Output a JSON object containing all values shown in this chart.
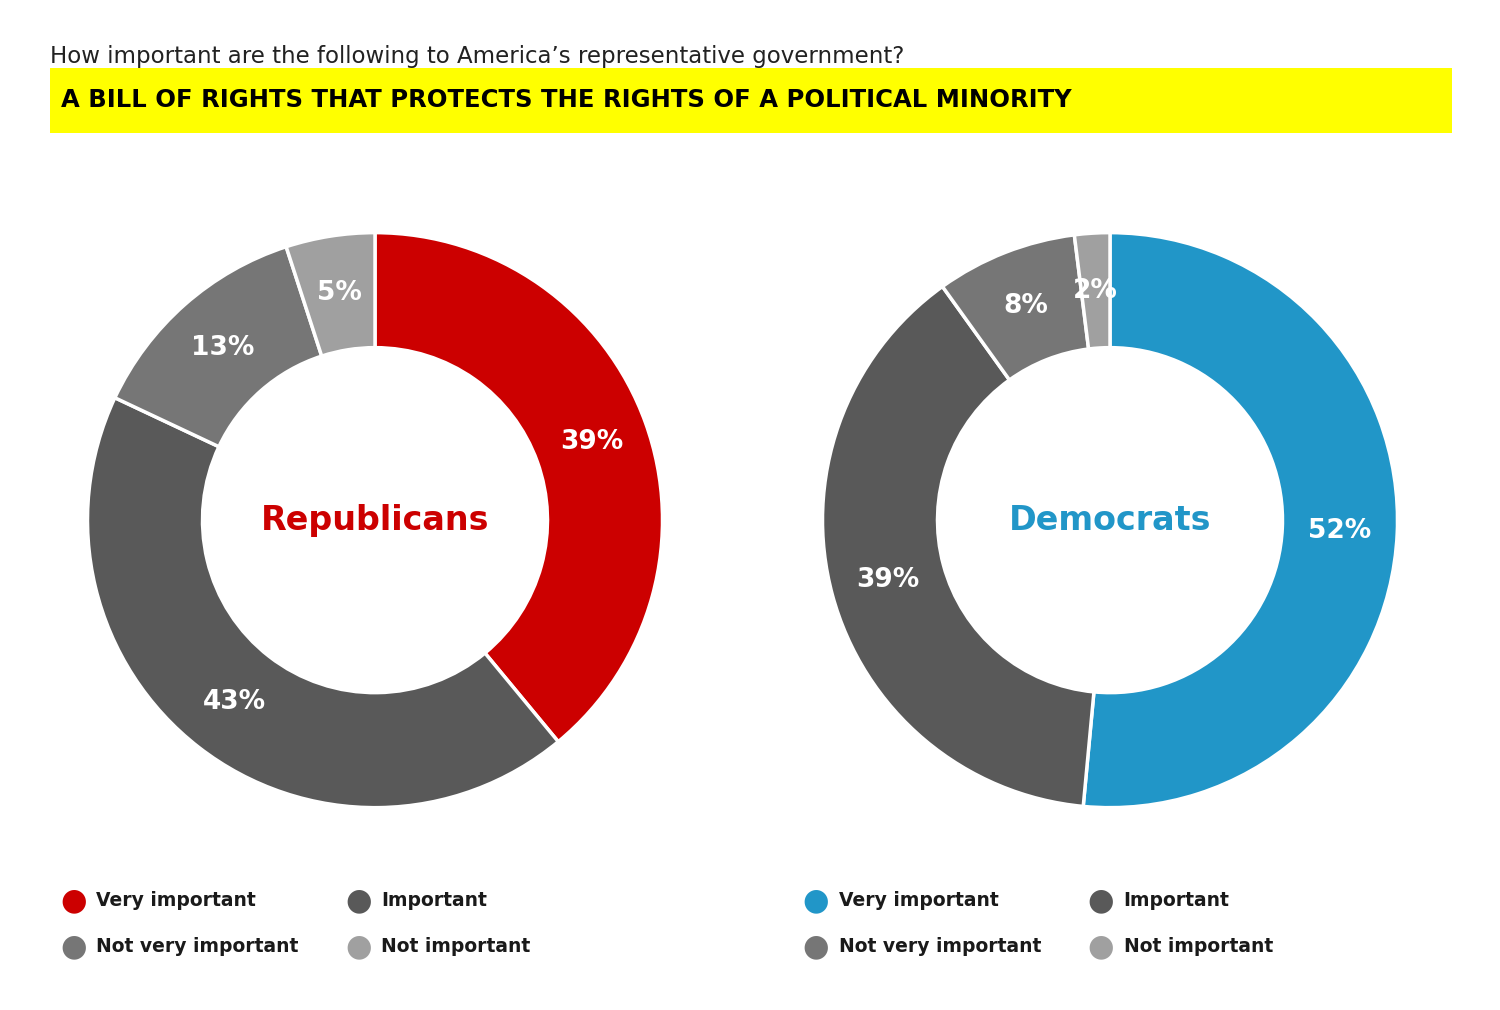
{
  "title_question": "How important are the following to America’s representative government?",
  "title_highlight": "A BILL OF RIGHTS THAT PROTECTS THE RIGHTS OF A POLITICAL MINORITY",
  "title_highlight_bg": "#FFFF00",
  "title_highlight_color": "#000000",
  "background_color": "#FFFFFF",
  "republicans": {
    "label": "Republicans",
    "label_color": "#CC0000",
    "values": [
      39,
      43,
      13,
      5
    ],
    "colors": [
      "#CC0000",
      "#595959",
      "#767676",
      "#A0A0A0"
    ],
    "pct_labels": [
      "39%",
      "43%",
      "13%",
      "5%"
    ],
    "legend_colors": [
      "#CC0000",
      "#595959",
      "#767676",
      "#A0A0A0"
    ]
  },
  "democrats": {
    "label": "Democrats",
    "label_color": "#2196C8",
    "values": [
      52,
      39,
      8,
      2
    ],
    "colors": [
      "#2196C8",
      "#595959",
      "#767676",
      "#A0A0A0"
    ],
    "pct_labels": [
      "52%",
      "39%",
      "8%",
      "2%"
    ],
    "legend_colors": [
      "#2196C8",
      "#595959",
      "#767676",
      "#A0A0A0"
    ]
  },
  "legend_labels": [
    "Very important",
    "Important",
    "Not very important",
    "Not important"
  ],
  "start_angle": 90
}
